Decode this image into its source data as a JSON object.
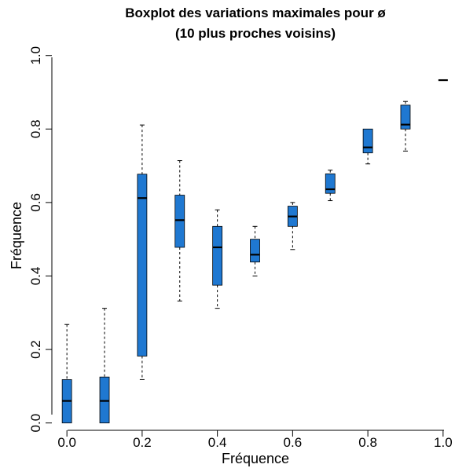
{
  "chart_data": {
    "type": "boxplot",
    "title": [
      "Boxplot des variations maximales pour ø",
      "(10 plus proches voisins)"
    ],
    "xlabel": "Fréquence",
    "ylabel": "Fréquence",
    "xlim": [
      -0.04,
      1.04
    ],
    "ylim": [
      -0.02,
      1.04
    ],
    "x_ticks": [
      "0.0",
      "0.2",
      "0.4",
      "0.6",
      "0.8",
      "1.0"
    ],
    "y_ticks": [
      "0.0",
      "0.2",
      "0.4",
      "0.6",
      "0.8",
      "1.0"
    ],
    "grid": false,
    "legend": "none",
    "box_color": "#1f78d1",
    "boxes": [
      {
        "x": 0.0,
        "whisker_low": 0.0,
        "q1": 0.0,
        "median": 0.06,
        "q3": 0.118,
        "whisker_high": 0.268
      },
      {
        "x": 0.1,
        "whisker_low": 0.0,
        "q1": 0.0,
        "median": 0.06,
        "q3": 0.125,
        "whisker_high": 0.312
      },
      {
        "x": 0.2,
        "whisker_low": 0.118,
        "q1": 0.182,
        "median": 0.612,
        "q3": 0.677,
        "whisker_high": 0.811
      },
      {
        "x": 0.3,
        "whisker_low": 0.332,
        "q1": 0.478,
        "median": 0.552,
        "q3": 0.62,
        "whisker_high": 0.714
      },
      {
        "x": 0.4,
        "whisker_low": 0.312,
        "q1": 0.375,
        "median": 0.478,
        "q3": 0.535,
        "whisker_high": 0.58
      },
      {
        "x": 0.5,
        "whisker_low": 0.4,
        "q1": 0.438,
        "median": 0.458,
        "q3": 0.5,
        "whisker_high": 0.535
      },
      {
        "x": 0.6,
        "whisker_low": 0.472,
        "q1": 0.535,
        "median": 0.562,
        "q3": 0.59,
        "whisker_high": 0.6
      },
      {
        "x": 0.7,
        "whisker_low": 0.605,
        "q1": 0.625,
        "median": 0.636,
        "q3": 0.678,
        "whisker_high": 0.688
      },
      {
        "x": 0.8,
        "whisker_low": 0.705,
        "q1": 0.735,
        "median": 0.75,
        "q3": 0.8,
        "whisker_high": 0.8
      },
      {
        "x": 0.9,
        "whisker_low": 0.74,
        "q1": 0.8,
        "median": 0.812,
        "q3": 0.865,
        "whisker_high": 0.875
      },
      {
        "x": 1.0,
        "whisker_low": 0.933,
        "q1": 0.933,
        "median": 0.933,
        "q3": 0.933,
        "whisker_high": 0.933
      }
    ]
  }
}
